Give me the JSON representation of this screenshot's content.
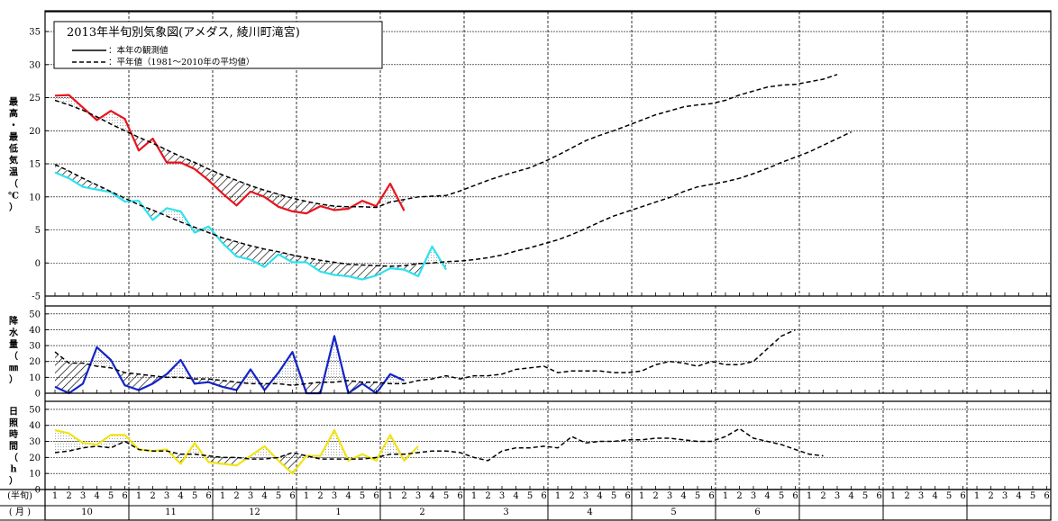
{
  "chart_data": {
    "title": "2013年半旬別気象図(アメダス, 綾川町滝宮)",
    "legend": {
      "observed": "：本年の観測値",
      "normal": "：平年値（1981～2010年の平均値）",
      "placement": "top-left"
    },
    "x_axis": {
      "pentad_row_label": "(半旬)",
      "month_row_label": "( 月 )",
      "pentads_per_month": [
        "1",
        "2",
        "3",
        "4",
        "5",
        "6"
      ],
      "months": [
        "10",
        "11",
        "12",
        "1",
        "2",
        "3",
        "4",
        "5",
        "6",
        "",
        "",
        ""
      ],
      "n_months": 12
    },
    "colors": {
      "tmax": "#e8141e",
      "tmin": "#2ee2ee",
      "precip": "#1424c8",
      "sun": "#f0e414",
      "normal": "#000000"
    },
    "panels": [
      {
        "type": "line",
        "id": "temp",
        "ylabel": [
          "最",
          "高",
          "・",
          "最",
          "低",
          "気",
          "温",
          "（",
          "℃",
          "）"
        ],
        "ylim": [
          -5,
          38
        ],
        "yticks": [
          -5,
          0,
          5,
          10,
          15,
          20,
          25,
          30,
          35
        ],
        "grid": true,
        "series": [
          {
            "kind": "observed",
            "color_key": "tmax",
            "values": [
              25.3,
              25.4,
              23.5,
              21.6,
              23.0,
              21.8,
              17.0,
              18.8,
              15.2,
              15.2,
              14.2,
              12.5,
              10.5,
              8.7,
              10.8,
              10.0,
              8.5,
              7.8,
              7.5,
              8.6,
              8.0,
              8.2,
              9.4,
              8.6,
              12.0,
              7.9
            ]
          },
          {
            "kind": "normal",
            "color_key": "normal",
            "values": [
              24.6,
              23.9,
              23.1,
              22.1,
              21.0,
              20.0,
              19.0,
              18.1,
              17.1,
              16.1,
              15.2,
              14.2,
              13.3,
              12.5,
              11.7,
              11.0,
              10.4,
              9.8,
              9.3,
              8.9,
              8.6,
              8.5,
              8.5,
              8.4,
              9.2,
              9.6,
              10.0,
              10.1,
              10.2,
              10.9,
              11.7,
              12.5,
              13.2,
              13.8,
              14.4,
              15.3,
              16.3,
              17.4,
              18.5,
              19.3,
              20.0,
              20.8,
              21.6,
              22.4,
              23.0,
              23.6,
              23.9,
              24.1,
              24.6,
              25.4,
              26.0,
              26.6,
              26.9,
              27.0,
              27.4,
              27.8,
              28.5
            ]
          },
          {
            "kind": "observed",
            "color_key": "tmin",
            "values": [
              13.7,
              12.8,
              11.5,
              11.1,
              10.7,
              9.3,
              9.4,
              6.5,
              8.3,
              7.8,
              4.6,
              5.5,
              3.0,
              1.0,
              0.5,
              -0.6,
              1.3,
              0.1,
              0.1,
              -1.3,
              -1.8,
              -2.0,
              -2.5,
              -1.9,
              -0.8,
              -1.0,
              -2.0,
              2.5,
              -1.0
            ]
          },
          {
            "kind": "normal",
            "color_key": "normal",
            "values": [
              14.9,
              13.9,
              12.8,
              11.8,
              10.8,
              9.8,
              8.8,
              8.0,
              7.1,
              6.2,
              5.4,
              4.6,
              3.8,
              3.2,
              2.6,
              2.1,
              1.7,
              1.2,
              0.8,
              0.4,
              0.1,
              -0.2,
              -0.3,
              -0.4,
              -0.5,
              -0.4,
              -0.1,
              0.0,
              0.2,
              0.3,
              0.5,
              0.8,
              1.2,
              1.8,
              2.3,
              2.9,
              3.5,
              4.3,
              5.2,
              6.2,
              7.1,
              7.8,
              8.5,
              9.2,
              9.9,
              10.8,
              11.5,
              11.9,
              12.3,
              12.8,
              13.5,
              14.3,
              15.2,
              16.0,
              16.8,
              17.8,
              18.8,
              19.8
            ]
          }
        ]
      },
      {
        "type": "line",
        "id": "precip",
        "ylabel": [
          "降",
          "水",
          "量",
          "（",
          "㎜",
          "）"
        ],
        "ylim": [
          0,
          55
        ],
        "yticks": [
          0,
          10,
          20,
          30,
          40,
          50
        ],
        "grid": true,
        "series": [
          {
            "kind": "observed",
            "color_key": "precip",
            "values": [
              4,
              0,
              6,
              29,
              21,
              5,
              2,
              6,
              12,
              21,
              6,
              7,
              4,
              2,
              15,
              2,
              13,
              26,
              0,
              0,
              36,
              0,
              6,
              0,
              12,
              8
            ]
          },
          {
            "kind": "normal",
            "color_key": "normal",
            "values": [
              26,
              19,
              19,
              17,
              16,
              13,
              12,
              11,
              10,
              10,
              9,
              9,
              8,
              7,
              6,
              6,
              6,
              5,
              6,
              7,
              7,
              8,
              7,
              7,
              6,
              6,
              8,
              9,
              11,
              9,
              11,
              11,
              12,
              15,
              16,
              17,
              13,
              14,
              14,
              14,
              13,
              13,
              14,
              18,
              20,
              19,
              17,
              20,
              18,
              18,
              20,
              28,
              36,
              40
            ]
          }
        ]
      },
      {
        "type": "line",
        "id": "sun",
        "ylabel": [
          "日",
          "照",
          "時",
          "間",
          "（",
          "h",
          "）"
        ],
        "ylim": [
          0,
          55
        ],
        "yticks": [
          0,
          10,
          20,
          30,
          40,
          50
        ],
        "grid": true,
        "series": [
          {
            "kind": "observed",
            "color_key": "sun",
            "values": [
              37,
              35,
              29,
              28,
              34,
              34,
              25,
              24,
              25,
              16,
              29,
              17,
              16,
              15,
              21,
              27,
              18,
              10,
              21,
              21,
              37,
              18,
              22,
              18,
              34,
              18,
              27
            ]
          },
          {
            "kind": "normal",
            "color_key": "normal",
            "values": [
              23,
              24,
              26,
              27,
              26,
              30,
              25,
              24,
              24,
              22,
              22,
              21,
              20,
              20,
              19,
              19,
              20,
              23,
              21,
              19,
              19,
              19,
              19,
              20,
              22,
              22,
              23,
              24,
              24,
              23,
              20,
              18,
              24,
              26,
              26,
              27,
              26,
              33,
              29,
              30,
              30,
              31,
              31,
              32,
              32,
              31,
              30,
              30,
              33,
              38,
              32,
              30,
              28,
              25,
              22,
              21
            ]
          }
        ]
      }
    ]
  }
}
